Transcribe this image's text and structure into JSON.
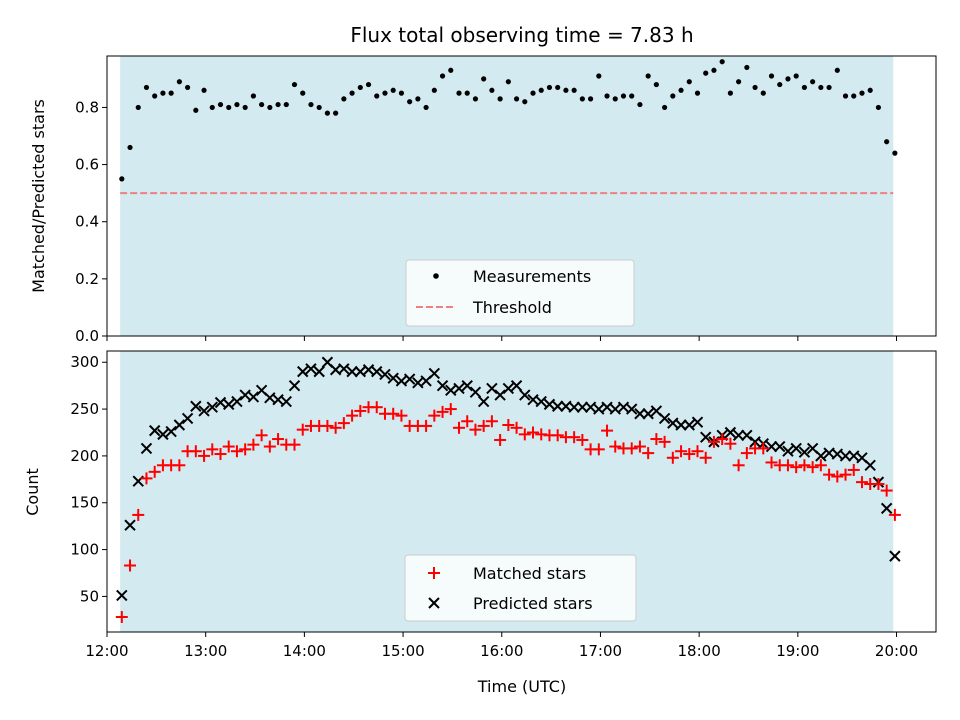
{
  "figure": {
    "title": "Flux total observing time = 7.83 h",
    "xlabel": "Time (UTC)"
  },
  "chart_data": [
    {
      "type": "scatter",
      "ylabel": "Matched/Predicted stars",
      "xlim": [
        "12:00",
        "20:24"
      ],
      "ylim": [
        0,
        0.98
      ],
      "yticks": [
        0.0,
        0.2,
        0.4,
        0.6,
        0.8
      ],
      "ytick_labels": [
        "0.0",
        "0.2",
        "0.4",
        "0.6",
        "0.8"
      ],
      "observing_window": {
        "start": "12:08",
        "end": "19:58",
        "color": "#d3eaf1"
      },
      "legend": {
        "position": "lower center"
      },
      "threshold": {
        "name": "Threshold",
        "value": 0.5,
        "color": "#f07f7f",
        "style": "dashed"
      },
      "series": [
        {
          "name": "Measurements",
          "color": "#000000",
          "marker": "dot",
          "x": [
            "12:09",
            "12:14",
            "12:19",
            "12:24",
            "12:29",
            "12:34",
            "12:39",
            "12:44",
            "12:49",
            "12:54",
            "12:59",
            "13:04",
            "13:09",
            "13:14",
            "13:19",
            "13:24",
            "13:29",
            "13:34",
            "13:39",
            "13:44",
            "13:49",
            "13:54",
            "13:59",
            "14:04",
            "14:09",
            "14:14",
            "14:19",
            "14:24",
            "14:29",
            "14:34",
            "14:39",
            "14:44",
            "14:49",
            "14:54",
            "14:59",
            "15:04",
            "15:09",
            "15:14",
            "15:19",
            "15:24",
            "15:29",
            "15:34",
            "15:39",
            "15:44",
            "15:49",
            "15:54",
            "15:59",
            "16:04",
            "16:09",
            "16:14",
            "16:19",
            "16:24",
            "16:29",
            "16:34",
            "16:39",
            "16:44",
            "16:49",
            "16:54",
            "16:59",
            "17:04",
            "17:09",
            "17:14",
            "17:19",
            "17:24",
            "17:29",
            "17:34",
            "17:39",
            "17:44",
            "17:49",
            "17:54",
            "17:59",
            "18:04",
            "18:09",
            "18:14",
            "18:19",
            "18:24",
            "18:29",
            "18:34",
            "18:39",
            "18:44",
            "18:49",
            "18:54",
            "18:59",
            "19:04",
            "19:09",
            "19:14",
            "19:19",
            "19:24",
            "19:29",
            "19:34",
            "19:39",
            "19:44",
            "19:49",
            "19:54",
            "19:59"
          ],
          "y": [
            0.55,
            0.66,
            0.8,
            0.87,
            0.84,
            0.85,
            0.85,
            0.89,
            0.87,
            0.79,
            0.86,
            0.8,
            0.81,
            0.8,
            0.81,
            0.8,
            0.84,
            0.81,
            0.8,
            0.81,
            0.81,
            0.88,
            0.85,
            0.81,
            0.8,
            0.78,
            0.78,
            0.83,
            0.85,
            0.87,
            0.88,
            0.84,
            0.85,
            0.86,
            0.85,
            0.82,
            0.83,
            0.8,
            0.86,
            0.91,
            0.93,
            0.85,
            0.85,
            0.83,
            0.9,
            0.86,
            0.83,
            0.89,
            0.83,
            0.82,
            0.85,
            0.86,
            0.87,
            0.87,
            0.86,
            0.86,
            0.83,
            0.83,
            0.91,
            0.84,
            0.83,
            0.84,
            0.84,
            0.81,
            0.91,
            0.88,
            0.8,
            0.84,
            0.86,
            0.89,
            0.85,
            0.92,
            0.93,
            0.96,
            0.85,
            0.89,
            0.94,
            0.87,
            0.85,
            0.91,
            0.88,
            0.9,
            0.91,
            0.87,
            0.89,
            0.87,
            0.87,
            0.93,
            0.84,
            0.84,
            0.85,
            0.86,
            0.8,
            0.68,
            0.64
          ]
        }
      ]
    },
    {
      "type": "scatter",
      "ylabel": "Count",
      "xlim": [
        "12:00",
        "20:24"
      ],
      "ylim": [
        12,
        312
      ],
      "yticks": [
        50,
        100,
        150,
        200,
        250,
        300
      ],
      "ytick_labels": [
        "50",
        "100",
        "150",
        "200",
        "250",
        "300"
      ],
      "xticks": [
        "12:00",
        "13:00",
        "14:00",
        "15:00",
        "16:00",
        "17:00",
        "18:00",
        "19:00",
        "20:00"
      ],
      "observing_window": {
        "start": "12:08",
        "end": "19:58",
        "color": "#d3eaf1"
      },
      "legend": {
        "position": "lower center"
      },
      "series": [
        {
          "name": "Matched stars",
          "color": "#ff0000",
          "marker": "plus",
          "x": [
            "12:09",
            "12:14",
            "12:19",
            "12:24",
            "12:29",
            "12:34",
            "12:39",
            "12:44",
            "12:49",
            "12:54",
            "12:59",
            "13:04",
            "13:09",
            "13:14",
            "13:19",
            "13:24",
            "13:29",
            "13:34",
            "13:39",
            "13:44",
            "13:49",
            "13:54",
            "13:59",
            "14:04",
            "14:09",
            "14:14",
            "14:19",
            "14:24",
            "14:29",
            "14:34",
            "14:39",
            "14:44",
            "14:49",
            "14:54",
            "14:59",
            "15:04",
            "15:09",
            "15:14",
            "15:19",
            "15:24",
            "15:29",
            "15:34",
            "15:39",
            "15:44",
            "15:49",
            "15:54",
            "15:59",
            "16:04",
            "16:09",
            "16:14",
            "16:19",
            "16:24",
            "16:29",
            "16:34",
            "16:39",
            "16:44",
            "16:49",
            "16:54",
            "16:59",
            "17:04",
            "17:09",
            "17:14",
            "17:19",
            "17:24",
            "17:29",
            "17:34",
            "17:39",
            "17:44",
            "17:49",
            "17:54",
            "17:59",
            "18:04",
            "18:09",
            "18:14",
            "18:19",
            "18:24",
            "18:29",
            "18:34",
            "18:39",
            "18:44",
            "18:49",
            "18:54",
            "18:59",
            "19:04",
            "19:09",
            "19:14",
            "19:19",
            "19:24",
            "19:29",
            "19:34",
            "19:39",
            "19:44",
            "19:49",
            "19:54",
            "19:59"
          ],
          "y": [
            28,
            83,
            137,
            176,
            183,
            190,
            190,
            190,
            205,
            205,
            200,
            207,
            202,
            210,
            205,
            207,
            212,
            222,
            210,
            218,
            212,
            212,
            228,
            232,
            232,
            232,
            230,
            235,
            243,
            248,
            252,
            252,
            245,
            245,
            243,
            232,
            232,
            232,
            243,
            247,
            250,
            230,
            237,
            228,
            232,
            237,
            217,
            233,
            230,
            223,
            225,
            223,
            222,
            222,
            220,
            220,
            217,
            207,
            207,
            227,
            210,
            208,
            208,
            210,
            203,
            218,
            215,
            198,
            205,
            202,
            205,
            198,
            215,
            218,
            213,
            190,
            203,
            208,
            208,
            193,
            190,
            190,
            188,
            190,
            188,
            190,
            180,
            178,
            180,
            185,
            172,
            170,
            170,
            163,
            137
          ]
        },
        {
          "name": "Predicted stars",
          "color": "#000000",
          "marker": "x",
          "x": [
            "12:09",
            "12:14",
            "12:19",
            "12:24",
            "12:29",
            "12:34",
            "12:39",
            "12:44",
            "12:49",
            "12:54",
            "12:59",
            "13:04",
            "13:09",
            "13:14",
            "13:19",
            "13:24",
            "13:29",
            "13:34",
            "13:39",
            "13:44",
            "13:49",
            "13:54",
            "13:59",
            "14:04",
            "14:09",
            "14:14",
            "14:19",
            "14:24",
            "14:29",
            "14:34",
            "14:39",
            "14:44",
            "14:49",
            "14:54",
            "14:59",
            "15:04",
            "15:09",
            "15:14",
            "15:19",
            "15:24",
            "15:29",
            "15:34",
            "15:39",
            "15:44",
            "15:49",
            "15:54",
            "15:59",
            "16:04",
            "16:09",
            "16:14",
            "16:19",
            "16:24",
            "16:29",
            "16:34",
            "16:39",
            "16:44",
            "16:49",
            "16:54",
            "16:59",
            "17:04",
            "17:09",
            "17:14",
            "17:19",
            "17:24",
            "17:29",
            "17:34",
            "17:39",
            "17:44",
            "17:49",
            "17:54",
            "17:59",
            "18:04",
            "18:09",
            "18:14",
            "18:19",
            "18:24",
            "18:29",
            "18:34",
            "18:39",
            "18:44",
            "18:49",
            "18:54",
            "18:59",
            "19:04",
            "19:09",
            "19:14",
            "19:19",
            "19:24",
            "19:29",
            "19:34",
            "19:39",
            "19:44",
            "19:49",
            "19:54",
            "19:59"
          ],
          "y": [
            51,
            126,
            173,
            208,
            227,
            223,
            226,
            233,
            240,
            253,
            248,
            252,
            257,
            255,
            258,
            265,
            263,
            270,
            262,
            260,
            258,
            275,
            290,
            293,
            290,
            300,
            292,
            293,
            290,
            290,
            292,
            290,
            287,
            283,
            280,
            282,
            278,
            280,
            288,
            275,
            270,
            272,
            275,
            268,
            258,
            272,
            265,
            272,
            275,
            265,
            260,
            258,
            255,
            253,
            253,
            252,
            252,
            252,
            250,
            252,
            250,
            252,
            250,
            245,
            245,
            248,
            240,
            235,
            233,
            233,
            236,
            220,
            215,
            222,
            225,
            222,
            222,
            215,
            213,
            210,
            210,
            205,
            208,
            204,
            208,
            200,
            203,
            202,
            200,
            200,
            198,
            190,
            172,
            144,
            93
          ]
        }
      ]
    }
  ]
}
